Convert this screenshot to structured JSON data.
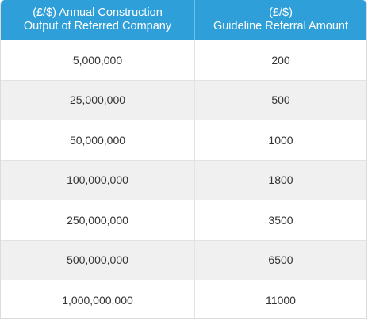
{
  "table": {
    "header": [
      [
        "(£/$) Annual Construction",
        "Output of Referred Company"
      ],
      [
        "(£/$)",
        "Guideline Referral Amount"
      ]
    ],
    "rows": [
      [
        "5,000,000",
        "200"
      ],
      [
        "25,000,000",
        "500"
      ],
      [
        "50,000,000",
        "1000"
      ],
      [
        "100,000,000",
        "1800"
      ],
      [
        "250,000,000",
        "3500"
      ],
      [
        "500,000,000",
        "6500"
      ],
      [
        "1,000,000,000",
        "11000"
      ]
    ]
  }
}
